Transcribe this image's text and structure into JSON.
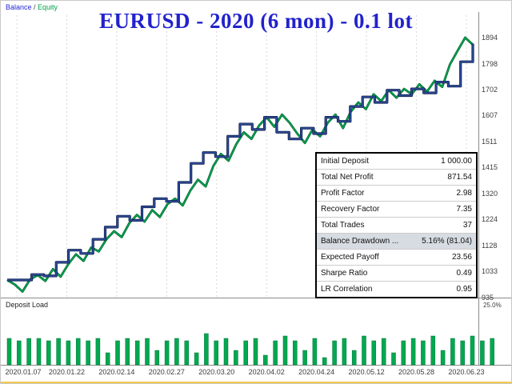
{
  "legend": {
    "balance": "Balance",
    "separator": " / ",
    "equity": "Equity"
  },
  "colors": {
    "title": "#2222cc",
    "balance_line": "#2e4da0",
    "balance_outline": "#0e1e4a",
    "equity_line": "#00ab52",
    "equity_outline": "#00622f",
    "bars": "#00a94f",
    "grid": "#d9d9d9",
    "axis": "#8a8a8a",
    "table_highlight": "#d7dce2"
  },
  "chart_data": {
    "type": "line",
    "title": "EURUSD - 2020 (6 mon) - 0.1 lot",
    "xlabel": "",
    "ylabel": "",
    "ylim": [
      935,
      1894
    ],
    "grid": "vertical-dashed",
    "legend_position": "top-left",
    "y_ticks": [
      1894,
      1798,
      1702,
      1607,
      1511,
      1415,
      1320,
      1224,
      1128,
      1033,
      935
    ],
    "x_labels": [
      "2020.01.07",
      "2020.01.22",
      "2020.02.14",
      "2020.02.27",
      "2020.03.20",
      "2020.04.02",
      "2020.04.24",
      "2020.05.12",
      "2020.05.28",
      "2020.06.23"
    ],
    "series": [
      {
        "name": "Balance",
        "style": "step",
        "color": "#2e4da0",
        "values": [
          1000,
          1000,
          1020,
          1015,
          1065,
          1110,
          1098,
          1150,
          1195,
          1235,
          1220,
          1270,
          1300,
          1290,
          1360,
          1430,
          1470,
          1455,
          1530,
          1575,
          1555,
          1600,
          1545,
          1520,
          1560,
          1540,
          1600,
          1585,
          1640,
          1675,
          1655,
          1700,
          1680,
          1705,
          1690,
          1730,
          1715,
          1805,
          1871.54
        ]
      },
      {
        "name": "Equity",
        "style": "line",
        "color": "#00ab52",
        "values": [
          1000,
          983,
          957,
          1002,
          1018,
          996,
          1040,
          1012,
          1058,
          1095,
          1070,
          1120,
          1105,
          1150,
          1180,
          1158,
          1210,
          1240,
          1215,
          1258,
          1232,
          1280,
          1300,
          1275,
          1330,
          1370,
          1345,
          1420,
          1465,
          1440,
          1500,
          1545,
          1520,
          1570,
          1600,
          1565,
          1610,
          1580,
          1540,
          1505,
          1555,
          1530,
          1580,
          1610,
          1560,
          1620,
          1655,
          1630,
          1685,
          1660,
          1700,
          1672,
          1705,
          1685,
          1722,
          1695,
          1735,
          1712,
          1795,
          1845,
          1894,
          1868
        ]
      }
    ],
    "deposit_load": {
      "title": "Deposit Load",
      "axis_max_label": "25.0%",
      "unit": "%",
      "ymax": 25,
      "bars": [
        11,
        10,
        11,
        11,
        10,
        11,
        10,
        11,
        10,
        11,
        5,
        10,
        11,
        10,
        11,
        6,
        10,
        11,
        10,
        5,
        13,
        10,
        11,
        6,
        10,
        11,
        4,
        10,
        12,
        10,
        6,
        11,
        3,
        10,
        11,
        6,
        12,
        10,
        11,
        5,
        10,
        11,
        10,
        12,
        6,
        11,
        10,
        12,
        10,
        11
      ]
    }
  },
  "stats_table": {
    "rows": [
      {
        "label": "Initial Deposit",
        "value": "1 000.00",
        "highlight": false
      },
      {
        "label": "Total Net Profit",
        "value": "871.54",
        "highlight": false
      },
      {
        "label": "Profit Factor",
        "value": "2.98",
        "highlight": false
      },
      {
        "label": "Recovery Factor",
        "value": "7.35",
        "highlight": false
      },
      {
        "label": "Total Trades",
        "value": "37",
        "highlight": false
      },
      {
        "label": "Balance Drawdown ...",
        "value": "5.16% (81.04)",
        "highlight": true
      },
      {
        "label": "Expected Payoff",
        "value": "23.56",
        "highlight": false
      },
      {
        "label": "Sharpe Ratio",
        "value": "0.49",
        "highlight": false
      },
      {
        "label": "LR Correlation",
        "value": "0.95",
        "highlight": false
      }
    ]
  }
}
